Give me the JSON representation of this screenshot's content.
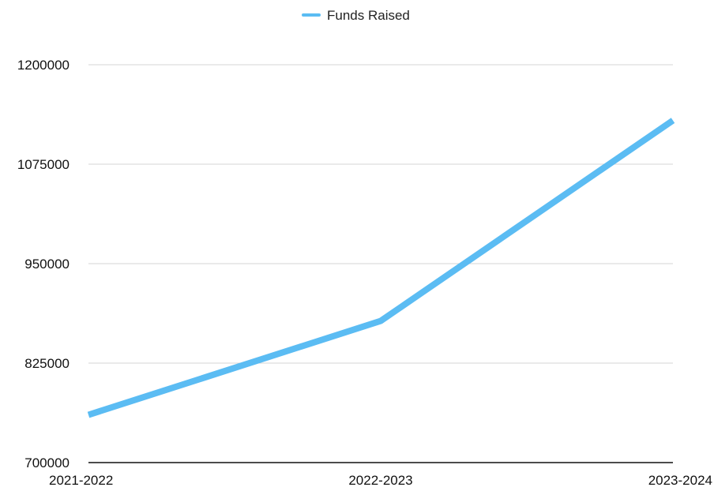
{
  "chart_data": {
    "type": "line",
    "categories": [
      "2021-2022",
      "2022-2023",
      "2023-2024"
    ],
    "series": [
      {
        "name": "Funds Raised",
        "values": [
          760000,
          878000,
          1130000
        ],
        "color": "#5bbcf3"
      }
    ],
    "yticks": [
      "1200000",
      "1075000",
      "950000",
      "825000",
      "700000"
    ],
    "ylim": [
      700000,
      1200000
    ],
    "grid": true,
    "legend_position": "top-center"
  }
}
